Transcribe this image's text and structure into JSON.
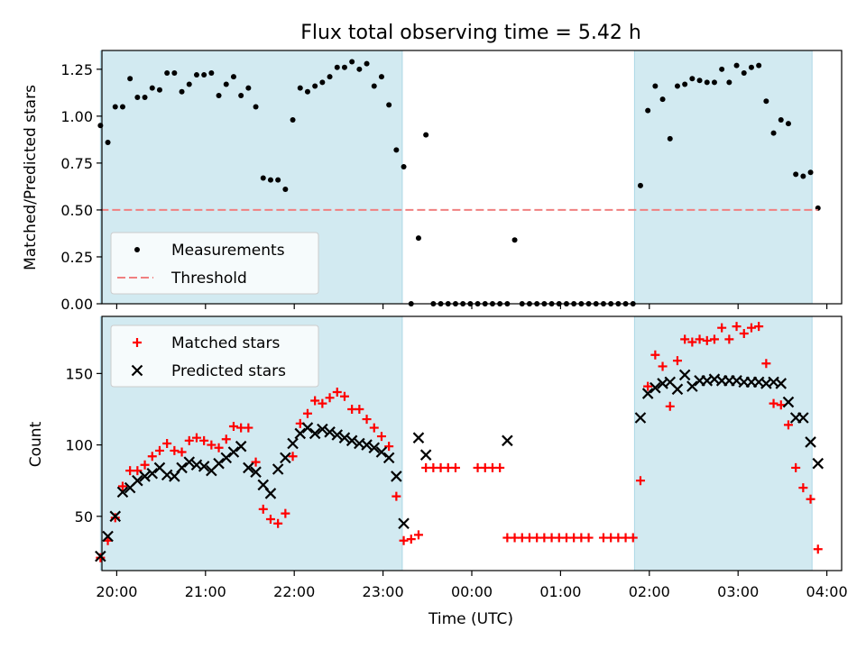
{
  "figure": {
    "title": "Flux total observing time = 5.42 h",
    "xlabel": "Time (UTC)",
    "x_ticks": [
      "20:00",
      "21:00",
      "22:00",
      "23:00",
      "00:00",
      "01:00",
      "02:00",
      "03:00",
      "04:00"
    ],
    "shaded_color": "#add8e6",
    "shaded_intervals": [
      [
        "19:49",
        "23:13"
      ],
      [
        "01:50",
        "03:50"
      ]
    ]
  },
  "chart_data": [
    {
      "type": "scatter",
      "panel": "top",
      "ylabel": "Matched/Predicted stars",
      "ylim": [
        0,
        1.35
      ],
      "y_ticks": [
        0.0,
        0.25,
        0.5,
        0.75,
        1.0,
        1.25
      ],
      "legend": "bottom-left",
      "series": [
        {
          "name": "Measurements",
          "marker": "dot",
          "color": "#000000",
          "x": [
            "19:49",
            "19:54",
            "19:59",
            "20:04",
            "20:09",
            "20:14",
            "20:19",
            "20:24",
            "20:29",
            "20:34",
            "20:39",
            "20:44",
            "20:49",
            "20:54",
            "20:59",
            "21:04",
            "21:09",
            "21:14",
            "21:19",
            "21:24",
            "21:29",
            "21:34",
            "21:39",
            "21:44",
            "21:49",
            "21:54",
            "21:59",
            "22:04",
            "22:09",
            "22:14",
            "22:19",
            "22:24",
            "22:29",
            "22:34",
            "22:39",
            "22:44",
            "22:49",
            "22:54",
            "22:59",
            "23:04",
            "23:09",
            "23:14",
            "23:19",
            "23:24",
            "23:29",
            "23:34",
            "23:39",
            "23:44",
            "23:49",
            "23:54",
            "23:59",
            "00:04",
            "00:09",
            "00:14",
            "00:19",
            "00:24",
            "00:29",
            "00:34",
            "00:39",
            "00:44",
            "00:49",
            "00:54",
            "00:59",
            "01:04",
            "01:09",
            "01:14",
            "01:19",
            "01:24",
            "01:29",
            "01:34",
            "01:39",
            "01:44",
            "01:49",
            "01:54",
            "01:59",
            "02:04",
            "02:09",
            "02:14",
            "02:19",
            "02:24",
            "02:29",
            "02:34",
            "02:39",
            "02:44",
            "02:49",
            "02:54",
            "02:59",
            "03:04",
            "03:09",
            "03:14",
            "03:19",
            "03:24",
            "03:29",
            "03:34",
            "03:39",
            "03:44",
            "03:49",
            "03:54"
          ],
          "y": [
            0.95,
            0.86,
            1.05,
            1.05,
            1.2,
            1.1,
            1.1,
            1.15,
            1.14,
            1.23,
            1.23,
            1.13,
            1.17,
            1.22,
            1.22,
            1.23,
            1.11,
            1.17,
            1.21,
            1.11,
            1.15,
            1.05,
            0.67,
            0.66,
            0.66,
            0.61,
            0.98,
            1.15,
            1.13,
            1.16,
            1.18,
            1.21,
            1.26,
            1.26,
            1.29,
            1.25,
            1.28,
            1.16,
            1.21,
            1.06,
            0.82,
            0.73,
            0,
            0.35,
            0.9,
            0,
            0,
            0,
            0,
            0,
            0,
            0,
            0,
            0,
            0,
            0,
            0.34,
            0,
            0,
            0,
            0,
            0,
            0,
            0,
            0,
            0,
            0,
            0,
            0,
            0,
            0,
            0,
            0,
            0.63,
            1.03,
            1.16,
            1.09,
            0.88,
            1.16,
            1.17,
            1.2,
            1.19,
            1.18,
            1.18,
            1.25,
            1.18,
            1.27,
            1.23,
            1.26,
            1.27,
            1.08,
            0.91,
            0.98,
            0.96,
            0.69,
            0.68,
            0.7,
            0.51
          ]
        },
        {
          "name": "Threshold",
          "marker": "dashed-line",
          "color": "#f08080",
          "x": [
            "19:49",
            "03:54"
          ],
          "y": [
            0.5,
            0.5
          ]
        }
      ]
    },
    {
      "type": "scatter",
      "panel": "bottom",
      "ylabel": "Count",
      "ylim": [
        12,
        190
      ],
      "y_ticks": [
        50,
        100,
        150
      ],
      "legend": "top-left",
      "series": [
        {
          "name": "Matched stars",
          "marker": "+",
          "color": "#ff0000",
          "x": [
            "19:49",
            "19:54",
            "19:59",
            "20:04",
            "20:09",
            "20:14",
            "20:19",
            "20:24",
            "20:29",
            "20:34",
            "20:39",
            "20:44",
            "20:49",
            "20:54",
            "20:59",
            "21:04",
            "21:09",
            "21:14",
            "21:19",
            "21:24",
            "21:29",
            "21:34",
            "21:39",
            "21:44",
            "21:49",
            "21:54",
            "21:59",
            "22:04",
            "22:09",
            "22:14",
            "22:19",
            "22:24",
            "22:29",
            "22:34",
            "22:39",
            "22:44",
            "22:49",
            "22:54",
            "22:59",
            "23:04",
            "23:09",
            "23:14",
            "23:19",
            "23:24",
            "23:29",
            "23:34",
            "23:39",
            "23:44",
            "23:49",
            "23:54",
            "23:59",
            "00:04",
            "00:09",
            "00:14",
            "00:19",
            "00:24",
            "00:29",
            "00:34",
            "00:39",
            "00:44",
            "00:49",
            "00:54",
            "00:59",
            "01:04",
            "01:09",
            "01:14",
            "01:19",
            "01:24",
            "01:29",
            "01:34",
            "01:39",
            "01:44",
            "01:49",
            "01:54",
            "01:59",
            "02:04",
            "02:09",
            "02:14",
            "02:19",
            "02:24",
            "02:29",
            "02:34",
            "02:39",
            "02:44",
            "02:49",
            "02:54",
            "02:59",
            "03:04",
            "03:09",
            "03:14",
            "03:19",
            "03:24",
            "03:29",
            "03:34",
            "03:39",
            "03:44",
            "03:49",
            "03:54"
          ],
          "y": [
            21,
            33,
            49,
            71,
            82,
            82,
            86,
            92,
            96,
            101,
            96,
            95,
            103,
            105,
            103,
            100,
            98,
            104,
            113,
            112,
            112,
            88,
            55,
            48,
            45,
            52,
            92,
            115,
            122,
            131,
            129,
            133,
            137,
            134,
            125,
            125,
            118,
            112,
            106,
            99,
            64,
            33,
            34,
            37,
            84,
            84,
            84,
            84,
            84,
            null,
            null,
            84,
            84,
            84,
            84,
            35,
            35,
            35,
            35,
            35,
            35,
            35,
            35,
            35,
            35,
            35,
            35,
            null,
            35,
            35,
            35,
            35,
            35,
            75,
            141,
            163,
            155,
            127,
            159,
            174,
            172,
            174,
            173,
            174,
            182,
            174,
            183,
            178,
            182,
            183,
            157,
            129,
            128,
            114,
            84,
            70,
            62,
            27
          ]
        },
        {
          "name": "Predicted stars",
          "marker": "x",
          "color": "#000000",
          "x": [
            "19:49",
            "19:54",
            "19:59",
            "20:04",
            "20:09",
            "20:14",
            "20:19",
            "20:24",
            "20:29",
            "20:34",
            "20:39",
            "20:44",
            "20:49",
            "20:54",
            "20:59",
            "21:04",
            "21:09",
            "21:14",
            "21:19",
            "21:24",
            "21:29",
            "21:34",
            "21:39",
            "21:44",
            "21:49",
            "21:54",
            "21:59",
            "22:04",
            "22:09",
            "22:14",
            "22:19",
            "22:24",
            "22:29",
            "22:34",
            "22:39",
            "22:44",
            "22:49",
            "22:54",
            "22:59",
            "23:04",
            "23:09",
            "23:14",
            "23:24",
            "23:29",
            "00:24",
            "01:54",
            "01:59",
            "02:04",
            "02:09",
            "02:14",
            "02:19",
            "02:24",
            "02:29",
            "02:34",
            "02:39",
            "02:44",
            "02:49",
            "02:54",
            "02:59",
            "03:04",
            "03:09",
            "03:14",
            "03:19",
            "03:24",
            "03:29",
            "03:34",
            "03:39",
            "03:44",
            "03:49",
            "03:54"
          ],
          "y": [
            22,
            36,
            50,
            67,
            70,
            75,
            78,
            80,
            84,
            79,
            78,
            84,
            88,
            86,
            85,
            82,
            87,
            91,
            95,
            99,
            84,
            81,
            72,
            66,
            83,
            91,
            101,
            108,
            112,
            108,
            111,
            109,
            107,
            105,
            103,
            101,
            100,
            98,
            95,
            91,
            78,
            45,
            105,
            93,
            103,
            119,
            136,
            140,
            143,
            144,
            139,
            149,
            141,
            145,
            145,
            146,
            145,
            145,
            145,
            144,
            144,
            144,
            143,
            144,
            143,
            130,
            119,
            119,
            102,
            87
          ]
        }
      ]
    }
  ]
}
